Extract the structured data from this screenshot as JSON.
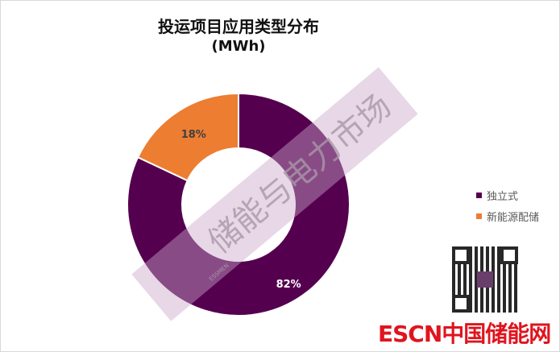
{
  "chart_data": {
    "type": "pie",
    "donut": true,
    "title": "投运项目应用类型分布",
    "subtitle": "(MWh)",
    "categories": [
      "独立式",
      "新能源配储"
    ],
    "values": [
      82,
      18
    ],
    "data_labels": [
      "82%",
      "18%"
    ],
    "colors": [
      "#55004f",
      "#ed7d31"
    ],
    "legend_position": "right"
  },
  "watermark": {
    "text": "储能与电力市场",
    "brand": "ESSMEN"
  },
  "logo": {
    "text": "ESCN中国储能网"
  }
}
